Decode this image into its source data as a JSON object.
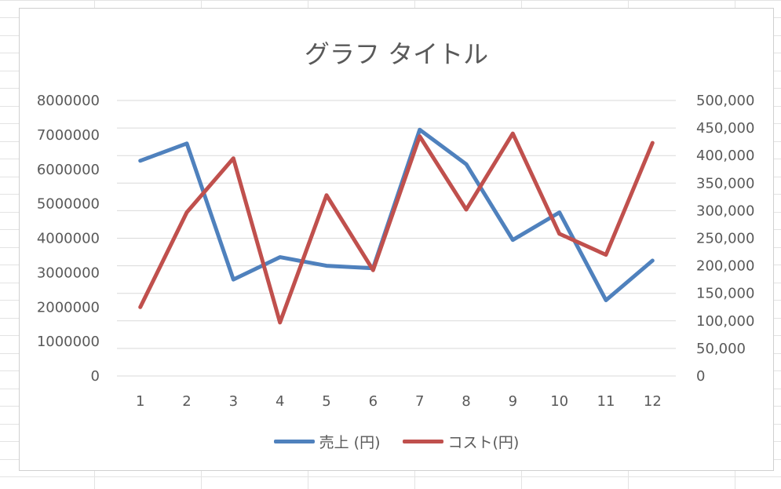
{
  "chart_data": {
    "type": "line",
    "title": "グラフ タイトル",
    "categories": [
      "1",
      "2",
      "3",
      "4",
      "5",
      "6",
      "7",
      "8",
      "9",
      "10",
      "11",
      "12"
    ],
    "series": [
      {
        "name": "売上 (円)",
        "axis": "left",
        "color": "#4F81BD",
        "values": [
          6250000,
          6750000,
          2800000,
          3450000,
          3200000,
          3130000,
          7150000,
          6150000,
          3950000,
          4750000,
          2200000,
          3350000
        ]
      },
      {
        "name": "コスト(円)",
        "axis": "right",
        "color": "#C0504D",
        "values": [
          125000,
          297000,
          395000,
          97000,
          328000,
          192000,
          435000,
          302000,
          440000,
          258000,
          220000,
          423000
        ]
      }
    ],
    "y_left": {
      "min": 0,
      "max": 8000000,
      "step": 1000000,
      "ticks": [
        "0",
        "1000000",
        "2000000",
        "3000000",
        "4000000",
        "5000000",
        "6000000",
        "7000000",
        "8000000"
      ]
    },
    "y_right": {
      "min": 0,
      "max": 500000,
      "step": 50000,
      "ticks": [
        "0",
        "50,000",
        "100,000",
        "150,000",
        "200,000",
        "250,000",
        "300,000",
        "350,000",
        "400,000",
        "450,000",
        "500,000"
      ]
    },
    "grid": true,
    "legend_position": "bottom",
    "colors": {
      "gridline": "#d9d9d9",
      "tick_text": "#595959",
      "sheet_grid": "#e3e3e3"
    }
  }
}
